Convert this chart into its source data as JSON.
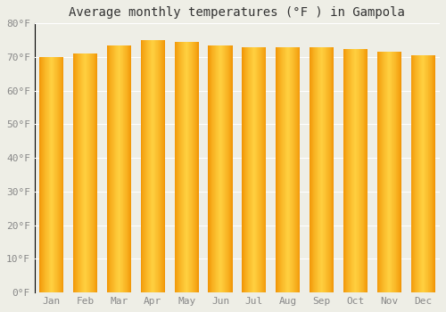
{
  "title": "Average monthly temperatures (°F ) in Gampola",
  "months": [
    "Jan",
    "Feb",
    "Mar",
    "Apr",
    "May",
    "Jun",
    "Jul",
    "Aug",
    "Sep",
    "Oct",
    "Nov",
    "Dec"
  ],
  "values": [
    70,
    71,
    73.5,
    75,
    74.5,
    73.5,
    73,
    73,
    73,
    72.5,
    71.5,
    70.5
  ],
  "ylim": [
    0,
    80
  ],
  "yticks": [
    0,
    10,
    20,
    30,
    40,
    50,
    60,
    70,
    80
  ],
  "ytick_labels": [
    "0°F",
    "10°F",
    "20°F",
    "30°F",
    "40°F",
    "50°F",
    "60°F",
    "70°F",
    "80°F"
  ],
  "bar_color_center": "#FFD040",
  "bar_color_edge": "#F09000",
  "background_color": "#EEEEE6",
  "grid_color": "#FFFFFF",
  "title_fontsize": 10,
  "tick_fontsize": 8,
  "bar_width": 0.72
}
